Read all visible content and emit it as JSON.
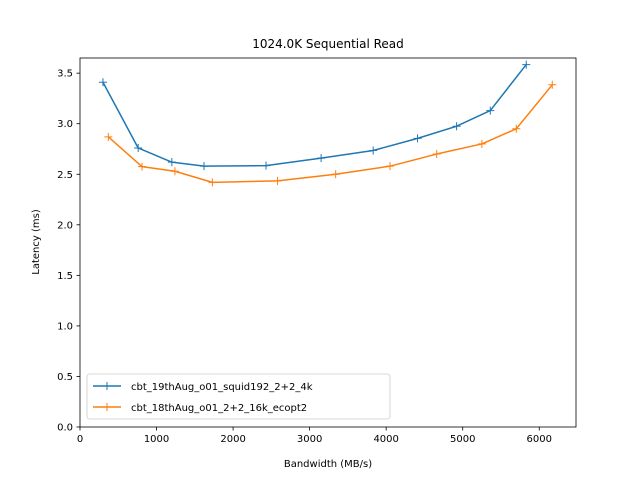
{
  "chart_data": {
    "type": "line",
    "title": "1024.0K  Sequential Read",
    "xlabel": "Bandwidth (MB/s)",
    "ylabel": "Latency (ms)",
    "xlim": [
      0,
      6480
    ],
    "ylim": [
      0,
      3.65
    ],
    "xticks": [
      0,
      1000,
      2000,
      3000,
      4000,
      5000,
      6000
    ],
    "yticks": [
      0.0,
      0.5,
      1.0,
      1.5,
      2.0,
      2.5,
      3.0,
      3.5
    ],
    "xtick_labels": [
      "0",
      "1000",
      "2000",
      "3000",
      "4000",
      "5000",
      "6000"
    ],
    "ytick_labels": [
      "0.0",
      "0.5",
      "1.0",
      "1.5",
      "2.0",
      "2.5",
      "3.0",
      "3.5"
    ],
    "legend_position": "lower-left",
    "grid": false,
    "series": [
      {
        "name": "cbt_19thAug_o01_squid192_2+2_4k",
        "color": "#1f77b4",
        "marker": "+",
        "x": [
          300,
          760,
          1200,
          1620,
          2430,
          3150,
          3830,
          4410,
          4920,
          5360,
          5830
        ],
        "y": [
          3.41,
          2.76,
          2.62,
          2.58,
          2.585,
          2.66,
          2.735,
          2.855,
          2.975,
          3.13,
          3.585
        ]
      },
      {
        "name": "cbt_18thAug_o01_2+2_16k_ecopt2",
        "color": "#ff7f0e",
        "marker": "+",
        "x": [
          370,
          810,
          1240,
          1730,
          2580,
          3340,
          4050,
          4660,
          5250,
          5700,
          6170
        ],
        "y": [
          2.87,
          2.575,
          2.53,
          2.42,
          2.435,
          2.5,
          2.58,
          2.7,
          2.8,
          2.95,
          3.385
        ]
      }
    ]
  }
}
